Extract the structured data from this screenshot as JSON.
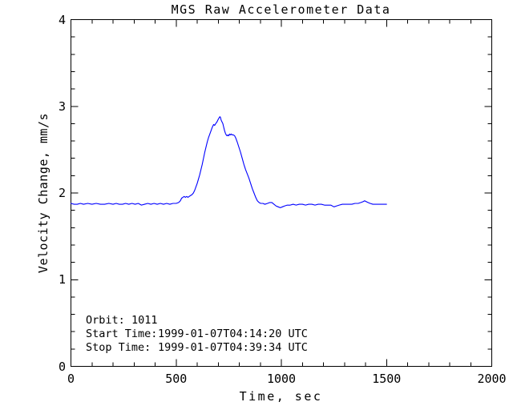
{
  "colors": {
    "line": "#0000ff",
    "axis": "#000000",
    "background": "#ffffff",
    "text": "#000000"
  },
  "chart_data": {
    "type": "line",
    "title": "MGS Raw Accelerometer Data",
    "xlabel": "Time, sec",
    "ylabel": "Velocity Change, mm/s",
    "xlim": [
      0,
      2000
    ],
    "ylim": [
      0,
      4
    ],
    "x_major_ticks": [
      0,
      500,
      1000,
      1500,
      2000
    ],
    "x_minor_step": 100,
    "y_major_ticks": [
      0,
      1,
      2,
      3,
      4
    ],
    "y_minor_step": 0.2,
    "grid": false,
    "legend": "none",
    "line_color": "#0000ff",
    "series": [
      {
        "name": "velocity-change",
        "points": [
          [
            0,
            1.88
          ],
          [
            15,
            1.87
          ],
          [
            30,
            1.87
          ],
          [
            45,
            1.88
          ],
          [
            60,
            1.87
          ],
          [
            80,
            1.88
          ],
          [
            100,
            1.87
          ],
          [
            120,
            1.88
          ],
          [
            140,
            1.87
          ],
          [
            160,
            1.87
          ],
          [
            180,
            1.88
          ],
          [
            200,
            1.87
          ],
          [
            215,
            1.88
          ],
          [
            230,
            1.87
          ],
          [
            245,
            1.87
          ],
          [
            260,
            1.88
          ],
          [
            275,
            1.87
          ],
          [
            290,
            1.88
          ],
          [
            305,
            1.87
          ],
          [
            320,
            1.88
          ],
          [
            335,
            1.86
          ],
          [
            350,
            1.87
          ],
          [
            365,
            1.88
          ],
          [
            380,
            1.87
          ],
          [
            395,
            1.88
          ],
          [
            410,
            1.87
          ],
          [
            425,
            1.88
          ],
          [
            440,
            1.87
          ],
          [
            455,
            1.88
          ],
          [
            470,
            1.87
          ],
          [
            485,
            1.88
          ],
          [
            500,
            1.88
          ],
          [
            512,
            1.89
          ],
          [
            520,
            1.91
          ],
          [
            526,
            1.94
          ],
          [
            532,
            1.95
          ],
          [
            538,
            1.96
          ],
          [
            544,
            1.95
          ],
          [
            550,
            1.96
          ],
          [
            556,
            1.95
          ],
          [
            562,
            1.96
          ],
          [
            568,
            1.97
          ],
          [
            575,
            1.98
          ],
          [
            582,
            2.0
          ],
          [
            588,
            2.03
          ],
          [
            594,
            2.07
          ],
          [
            600,
            2.11
          ],
          [
            606,
            2.16
          ],
          [
            612,
            2.21
          ],
          [
            618,
            2.27
          ],
          [
            624,
            2.33
          ],
          [
            630,
            2.4
          ],
          [
            636,
            2.47
          ],
          [
            642,
            2.53
          ],
          [
            648,
            2.59
          ],
          [
            654,
            2.64
          ],
          [
            660,
            2.68
          ],
          [
            666,
            2.72
          ],
          [
            672,
            2.76
          ],
          [
            678,
            2.79
          ],
          [
            683,
            2.78
          ],
          [
            688,
            2.8
          ],
          [
            694,
            2.82
          ],
          [
            700,
            2.85
          ],
          [
            705,
            2.87
          ],
          [
            708,
            2.88
          ],
          [
            711,
            2.87
          ],
          [
            714,
            2.84
          ],
          [
            718,
            2.82
          ],
          [
            722,
            2.8
          ],
          [
            726,
            2.76
          ],
          [
            730,
            2.72
          ],
          [
            734,
            2.69
          ],
          [
            738,
            2.67
          ],
          [
            742,
            2.66
          ],
          [
            746,
            2.67
          ],
          [
            750,
            2.66
          ],
          [
            754,
            2.68
          ],
          [
            758,
            2.67
          ],
          [
            762,
            2.68
          ],
          [
            766,
            2.67
          ],
          [
            772,
            2.67
          ],
          [
            778,
            2.66
          ],
          [
            784,
            2.63
          ],
          [
            790,
            2.59
          ],
          [
            798,
            2.53
          ],
          [
            806,
            2.47
          ],
          [
            814,
            2.4
          ],
          [
            822,
            2.33
          ],
          [
            830,
            2.27
          ],
          [
            838,
            2.22
          ],
          [
            846,
            2.17
          ],
          [
            854,
            2.11
          ],
          [
            862,
            2.05
          ],
          [
            870,
            2.0
          ],
          [
            878,
            1.95
          ],
          [
            886,
            1.91
          ],
          [
            894,
            1.89
          ],
          [
            902,
            1.88
          ],
          [
            912,
            1.88
          ],
          [
            922,
            1.87
          ],
          [
            934,
            1.88
          ],
          [
            945,
            1.89
          ],
          [
            955,
            1.89
          ],
          [
            965,
            1.87
          ],
          [
            975,
            1.85
          ],
          [
            985,
            1.84
          ],
          [
            995,
            1.83
          ],
          [
            1005,
            1.84
          ],
          [
            1015,
            1.85
          ],
          [
            1028,
            1.86
          ],
          [
            1042,
            1.86
          ],
          [
            1056,
            1.87
          ],
          [
            1070,
            1.86
          ],
          [
            1085,
            1.87
          ],
          [
            1100,
            1.87
          ],
          [
            1115,
            1.86
          ],
          [
            1130,
            1.87
          ],
          [
            1145,
            1.87
          ],
          [
            1160,
            1.86
          ],
          [
            1175,
            1.87
          ],
          [
            1190,
            1.87
          ],
          [
            1205,
            1.86
          ],
          [
            1220,
            1.86
          ],
          [
            1235,
            1.86
          ],
          [
            1250,
            1.84
          ],
          [
            1262,
            1.85
          ],
          [
            1275,
            1.86
          ],
          [
            1290,
            1.87
          ],
          [
            1305,
            1.87
          ],
          [
            1320,
            1.87
          ],
          [
            1335,
            1.87
          ],
          [
            1350,
            1.88
          ],
          [
            1365,
            1.88
          ],
          [
            1378,
            1.89
          ],
          [
            1388,
            1.9
          ],
          [
            1396,
            1.91
          ],
          [
            1404,
            1.9
          ],
          [
            1412,
            1.89
          ],
          [
            1422,
            1.88
          ],
          [
            1435,
            1.87
          ],
          [
            1450,
            1.87
          ],
          [
            1465,
            1.87
          ],
          [
            1480,
            1.87
          ],
          [
            1500,
            1.87
          ]
        ]
      }
    ]
  },
  "annotations": {
    "orbit_label": "Orbit:",
    "orbit_value": "1011",
    "start_label": "Start Time:",
    "start_value": "1999-01-07T04:14:20 UTC",
    "stop_label": "Stop Time:",
    "stop_value": "1999-01-07T04:39:34 UTC"
  }
}
